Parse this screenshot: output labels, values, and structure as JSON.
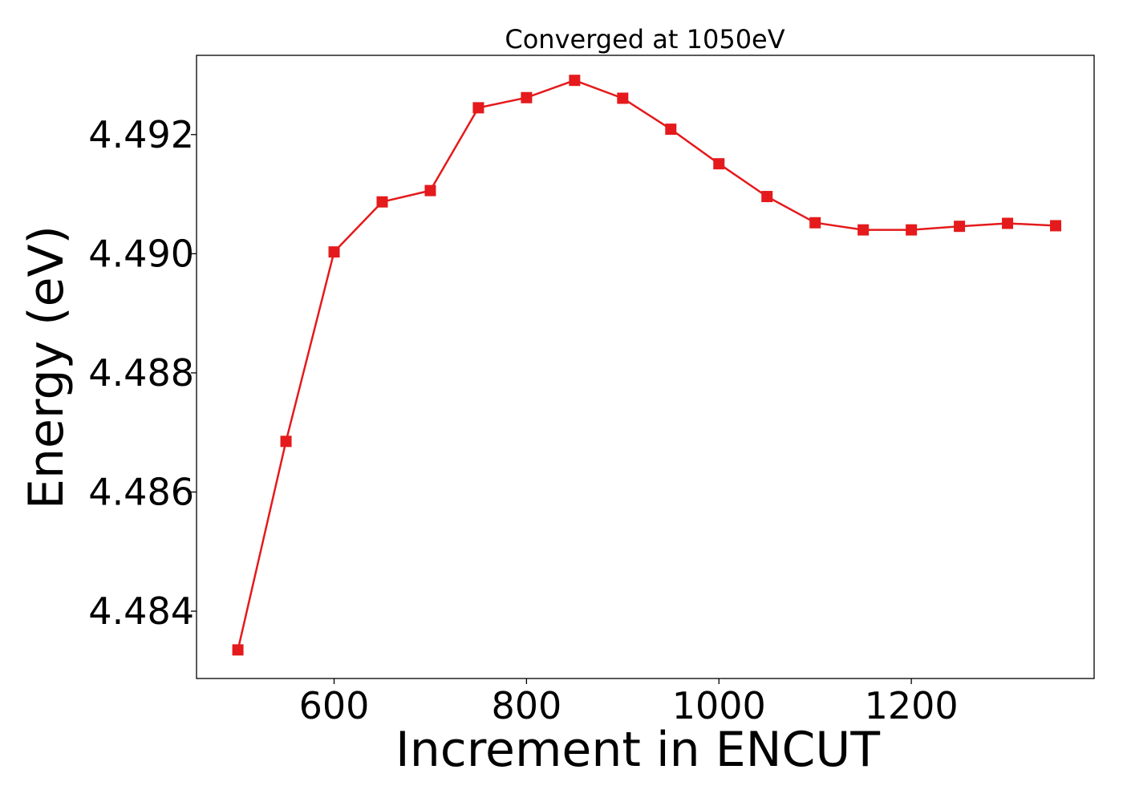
{
  "chart_data": {
    "type": "line",
    "title": "Converged at 1050eV",
    "xlabel": "Increment in ENCUT",
    "ylabel": "Energy (eV)",
    "xlim": [
      457,
      1390
    ],
    "ylim": [
      4.48287,
      4.49333
    ],
    "x_ticks": [
      600,
      800,
      1000,
      1200
    ],
    "x_tick_labels": [
      "600",
      "800",
      "1000",
      "1200"
    ],
    "y_ticks": [
      4.484,
      4.486,
      4.488,
      4.49,
      4.492
    ],
    "y_tick_labels": [
      "4.484",
      "4.486",
      "4.488",
      "4.490",
      "4.492"
    ],
    "grid": false,
    "line_color": "#e41a1c",
    "marker": "square",
    "series": [
      {
        "x": [
          500,
          550,
          600,
          650,
          700,
          750,
          800,
          850,
          900,
          950,
          1000,
          1050,
          1100,
          1150,
          1200,
          1250,
          1300,
          1350
        ],
        "values": [
          4.48335,
          4.48685,
          4.49003,
          4.49087,
          4.49106,
          4.49245,
          4.49262,
          4.49291,
          4.49261,
          4.49209,
          4.49151,
          4.49096,
          4.49052,
          4.4904,
          4.4904,
          4.49046,
          4.49051,
          4.49047
        ]
      }
    ]
  }
}
